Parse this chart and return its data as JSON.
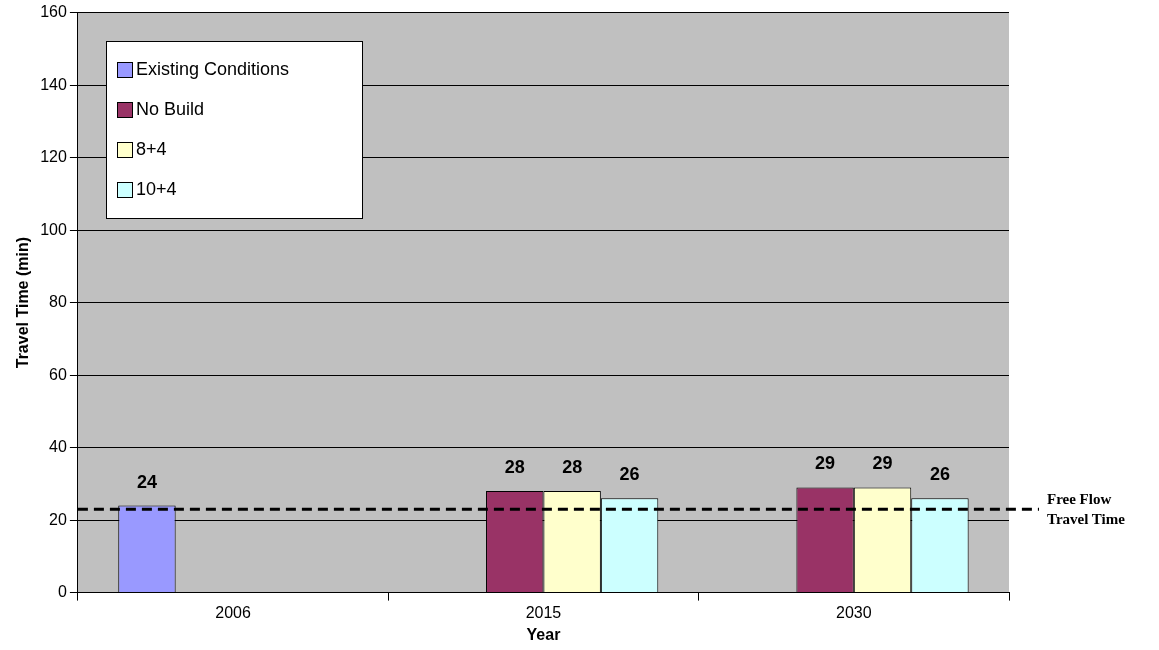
{
  "chart_data": {
    "type": "bar",
    "xlabel": "Year",
    "ylabel": "Travel Time (min)",
    "categories": [
      "2006",
      "2015",
      "2030"
    ],
    "series": [
      {
        "name": "Existing Conditions",
        "color": "#9999ff",
        "values": [
          24,
          null,
          null
        ]
      },
      {
        "name": "No Build",
        "color": "#993366",
        "values": [
          null,
          28,
          29
        ]
      },
      {
        "name": "8+4",
        "color": "#ffffcc",
        "values": [
          null,
          28,
          29
        ]
      },
      {
        "name": "10+4",
        "color": "#ccffff",
        "values": [
          null,
          26,
          26
        ]
      }
    ],
    "ylim": [
      0,
      160
    ],
    "yticks": [
      0,
      20,
      40,
      60,
      80,
      100,
      120,
      140,
      160
    ],
    "grid": "y",
    "legend": "top left",
    "data_labels": true,
    "ref_lines": [
      {
        "axis": "y",
        "value": 23,
        "label": "Free Flow Travel Time",
        "color": "#000000",
        "line_style": "dashed"
      }
    ]
  }
}
